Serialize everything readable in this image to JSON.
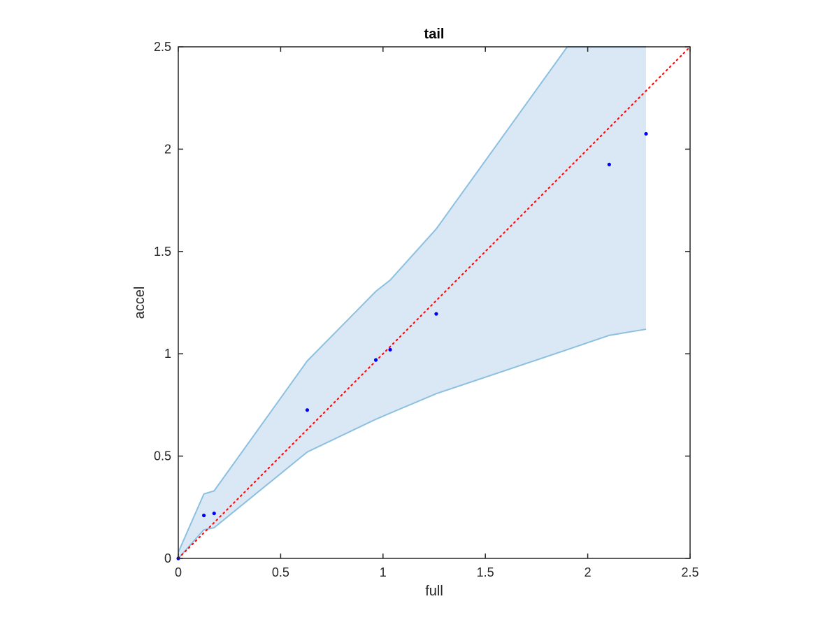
{
  "chart_data": {
    "type": "scatter",
    "title": "tail",
    "xlabel": "full",
    "ylabel": "accel",
    "xlim": [
      0,
      2.5
    ],
    "ylim": [
      0,
      2.5
    ],
    "xticks": [
      0,
      0.5,
      1,
      1.5,
      2,
      2.5
    ],
    "yticks": [
      0,
      0.5,
      1,
      1.5,
      2,
      2.5
    ],
    "xtick_labels": [
      "0",
      "0.5",
      "1",
      "1.5",
      "2",
      "2.5"
    ],
    "ytick_labels": [
      "0",
      "0.5",
      "1",
      "1.5",
      "2",
      "2.5"
    ],
    "grid": false,
    "points": {
      "x": [
        0,
        0.125,
        0.175,
        0.63,
        0.965,
        1.035,
        1.26,
        2.105,
        2.285
      ],
      "y": [
        0,
        0.21,
        0.22,
        0.725,
        0.97,
        1.02,
        1.195,
        1.925,
        2.075
      ],
      "color": "#0000ff"
    },
    "band": {
      "x": [
        0,
        0.125,
        0.175,
        0.63,
        0.965,
        1.035,
        1.26,
        1.9,
        2.105,
        2.285
      ],
      "upper": [
        0.03,
        0.315,
        0.33,
        0.965,
        1.305,
        1.36,
        1.61,
        2.5,
        2.5,
        2.5
      ],
      "lower": [
        0,
        0.14,
        0.15,
        0.52,
        0.68,
        0.71,
        0.805,
        1.02,
        1.09,
        1.12
      ],
      "fill_color": "#d9e8f4",
      "edge_color": "#8cc0e0"
    },
    "reference_line": {
      "x": [
        0,
        2.5
      ],
      "y": [
        0,
        2.5
      ],
      "color": "#ff0000",
      "style": "dotted"
    }
  }
}
